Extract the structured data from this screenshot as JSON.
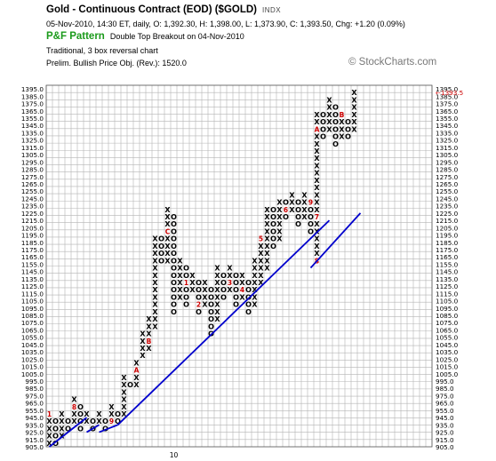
{
  "header": {
    "title": "Gold - Continuous Contract (EOD) ($GOLD)",
    "exchange": "INDX",
    "quote": "05-Nov-2010, 14:30 ET, daily, O: 1,392.30, H: 1,398.00, L: 1,373.90, C: 1,393.50, Chg: +1.20 (0.09%)",
    "chart_name": "P&F Pattern",
    "pattern": "Double Top Breakout on 04-Nov-2010",
    "method": "Traditional, 3 box reversal chart",
    "objective": "Prelim. Bullish Price Obj. (Rev.): 1520.0",
    "copyright": "© StockCharts.com"
  },
  "colors": {
    "background": "#ffffff",
    "grid": "#b4b4b4",
    "symbols": "#000000",
    "month_markers": "#cc0000",
    "trendlines": "#0000cc",
    "pattern_label": "#1a9a1a"
  },
  "chart_data": {
    "type": "point-and-figure",
    "box_size": 10,
    "reversal": 3,
    "ylim": [
      905,
      1400
    ],
    "y_tick_step": 10,
    "y_axis_sides": [
      "left",
      "right"
    ],
    "x_tick_labels": [
      {
        "column": 20,
        "label": "10"
      }
    ],
    "grid": true,
    "current_price_label": "1393.5",
    "current_price_box": 1390,
    "columns": [
      {
        "type": "X",
        "low": 910,
        "high": 950,
        "marks": {
          "950": "1"
        }
      },
      {
        "type": "O",
        "low": 910,
        "high": 940
      },
      {
        "type": "X",
        "low": 920,
        "high": 950
      },
      {
        "type": "O",
        "low": 930,
        "high": 940
      },
      {
        "type": "X",
        "low": 940,
        "high": 970,
        "marks": {
          "960": "8"
        }
      },
      {
        "type": "O",
        "low": 930,
        "high": 960
      },
      {
        "type": "X",
        "low": 940,
        "high": 950
      },
      {
        "type": "O",
        "low": 930,
        "high": 940
      },
      {
        "type": "X",
        "low": 940,
        "high": 950
      },
      {
        "type": "O",
        "low": 930,
        "high": 940
      },
      {
        "type": "X",
        "low": 940,
        "high": 960,
        "marks": {
          "940": "9"
        }
      },
      {
        "type": "O",
        "low": 940,
        "high": 950
      },
      {
        "type": "X",
        "low": 950,
        "high": 1000
      },
      {
        "type": "O",
        "low": 990,
        "high": 990
      },
      {
        "type": "X",
        "low": 990,
        "high": 1020,
        "marks": {
          "1010": "A"
        }
      },
      {
        "type": "X",
        "low": 1030,
        "high": 1060
      },
      {
        "type": "X",
        "low": 1040,
        "high": 1080,
        "marks": {
          "1050": "B"
        }
      },
      {
        "type": "X",
        "low": 1070,
        "high": 1190
      },
      {
        "type": "O",
        "low": 1160,
        "high": 1190
      },
      {
        "type": "X",
        "low": 1160,
        "high": 1230,
        "marks": {
          "1200": "C"
        }
      },
      {
        "type": "O",
        "low": 1090,
        "high": 1220
      },
      {
        "type": "X",
        "low": 1110,
        "high": 1160
      },
      {
        "type": "O",
        "low": 1100,
        "high": 1150,
        "marks": {
          "1130": "1"
        }
      },
      {
        "type": "X",
        "low": 1120,
        "high": 1140
      },
      {
        "type": "O",
        "low": 1090,
        "high": 1130,
        "marks": {
          "1100": "2"
        }
      },
      {
        "type": "X",
        "low": 1100,
        "high": 1130
      },
      {
        "type": "O",
        "low": 1060,
        "high": 1120
      },
      {
        "type": "X",
        "low": 1080,
        "high": 1150
      },
      {
        "type": "O",
        "low": 1110,
        "high": 1140
      },
      {
        "type": "X",
        "low": 1120,
        "high": 1150,
        "marks": {
          "1130": "3"
        }
      },
      {
        "type": "O",
        "low": 1100,
        "high": 1140
      },
      {
        "type": "X",
        "low": 1110,
        "high": 1140,
        "marks": {
          "1120": "4"
        }
      },
      {
        "type": "O",
        "low": 1090,
        "high": 1130
      },
      {
        "type": "X",
        "low": 1100,
        "high": 1160
      },
      {
        "type": "X",
        "low": 1130,
        "high": 1190,
        "marks": {
          "1190": "5"
        }
      },
      {
        "type": "X",
        "low": 1150,
        "high": 1230
      },
      {
        "type": "O",
        "low": 1180,
        "high": 1230
      },
      {
        "type": "X",
        "low": 1190,
        "high": 1240
      },
      {
        "type": "O",
        "low": 1220,
        "high": 1240,
        "marks": {
          "1230": "6"
        }
      },
      {
        "type": "X",
        "low": 1230,
        "high": 1250
      },
      {
        "type": "O",
        "low": 1210,
        "high": 1240
      },
      {
        "type": "X",
        "low": 1220,
        "high": 1250
      },
      {
        "type": "O",
        "low": 1200,
        "high": 1240,
        "marks": {
          "1240": "9"
        }
      },
      {
        "type": "X",
        "low": 1160,
        "high": 1360,
        "marks": {
          "1160": "8",
          "1220": "7",
          "1340": "A"
        }
      },
      {
        "type": "O",
        "low": 1330,
        "high": 1360
      },
      {
        "type": "X",
        "low": 1340,
        "high": 1380
      },
      {
        "type": "O",
        "low": 1320,
        "high": 1370
      },
      {
        "type": "X",
        "low": 1330,
        "high": 1360,
        "marks": {
          "1360": "B"
        }
      },
      {
        "type": "O",
        "low": 1330,
        "high": 1350
      },
      {
        "type": "X",
        "low": 1340,
        "high": 1390
      }
    ],
    "trendlines": [
      {
        "from": {
          "column": 0,
          "box": 905
        },
        "to": {
          "column": 6,
          "box": 945
        }
      },
      {
        "from": {
          "column": 6,
          "box": 925
        },
        "to": {
          "column": 8,
          "box": 935
        }
      },
      {
        "from": {
          "column": 8,
          "box": 925
        },
        "to": {
          "column": 11,
          "box": 935
        }
      },
      {
        "from": {
          "column": 11,
          "box": 935
        },
        "to": {
          "column": 45,
          "box": 1215
        }
      },
      {
        "from": {
          "column": 42,
          "box": 1150
        },
        "to": {
          "column": 50,
          "box": 1225
        }
      }
    ]
  }
}
